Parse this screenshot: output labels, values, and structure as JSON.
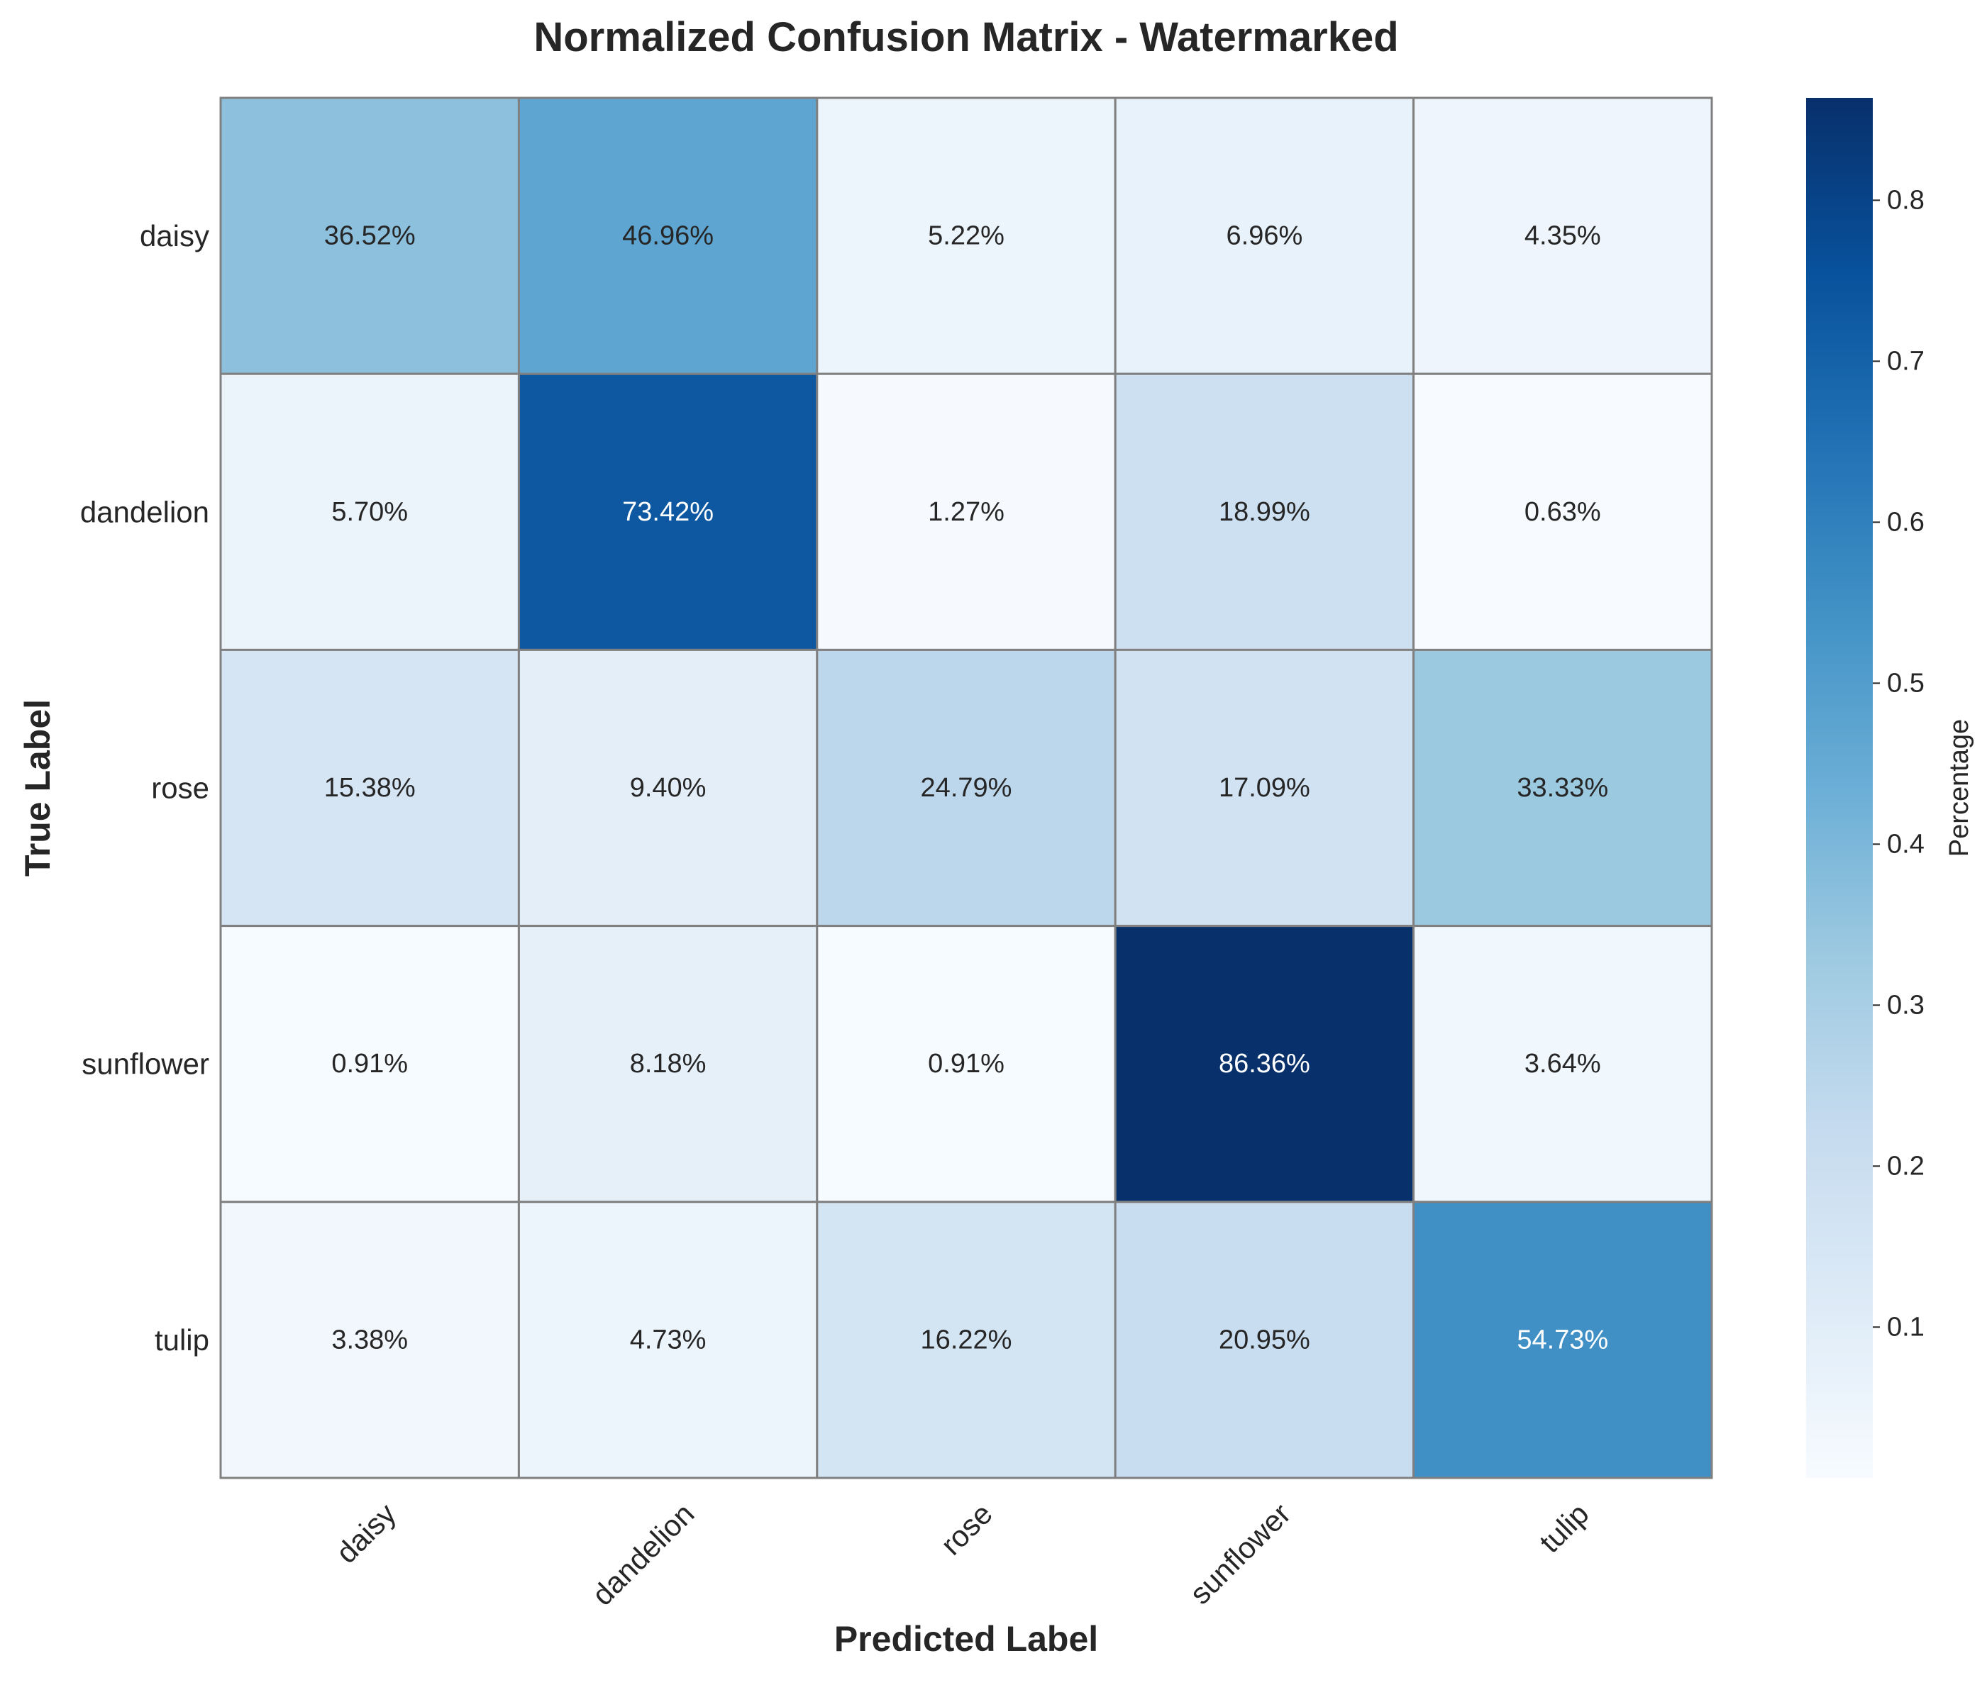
{
  "chart_data": {
    "type": "heatmap",
    "title": "Normalized Confusion Matrix - Watermarked",
    "xlabel": "Predicted Label",
    "ylabel": "True Label",
    "x_categories": [
      "daisy",
      "dandelion",
      "rose",
      "sunflower",
      "tulip"
    ],
    "y_categories": [
      "daisy",
      "dandelion",
      "rose",
      "sunflower",
      "tulip"
    ],
    "values": [
      [
        0.3652,
        0.4696,
        0.0522,
        0.0696,
        0.0435
      ],
      [
        0.057,
        0.7342,
        0.0127,
        0.1899,
        0.0063
      ],
      [
        0.1538,
        0.094,
        0.2479,
        0.1709,
        0.3333
      ],
      [
        0.0091,
        0.0818,
        0.0091,
        0.8636,
        0.0364
      ],
      [
        0.0338,
        0.0473,
        0.1622,
        0.2095,
        0.5473
      ]
    ],
    "cell_labels": [
      [
        "36.52%",
        "46.96%",
        "5.22%",
        "6.96%",
        "4.35%"
      ],
      [
        "5.70%",
        "73.42%",
        "1.27%",
        "18.99%",
        "0.63%"
      ],
      [
        "15.38%",
        "9.40%",
        "24.79%",
        "17.09%",
        "33.33%"
      ],
      [
        "0.91%",
        "8.18%",
        "0.91%",
        "86.36%",
        "3.64%"
      ],
      [
        "3.38%",
        "4.73%",
        "16.22%",
        "20.95%",
        "54.73%"
      ]
    ],
    "colormap": "Blues",
    "colormap_stops": [
      "#f7fbff",
      "#deebf7",
      "#c6dbef",
      "#9ecae1",
      "#6baed6",
      "#4292c6",
      "#2171b5",
      "#08519c",
      "#08306b"
    ],
    "cell_border_color": "#808080",
    "colorbar": {
      "label": "Percentage",
      "range": [
        0.0063,
        0.8636
      ],
      "ticks": [
        0.1,
        0.2,
        0.3,
        0.4,
        0.5,
        0.6,
        0.7,
        0.8
      ],
      "tick_labels": [
        "0.1",
        "0.2",
        "0.3",
        "0.4",
        "0.5",
        "0.6",
        "0.7",
        "0.8"
      ]
    }
  }
}
